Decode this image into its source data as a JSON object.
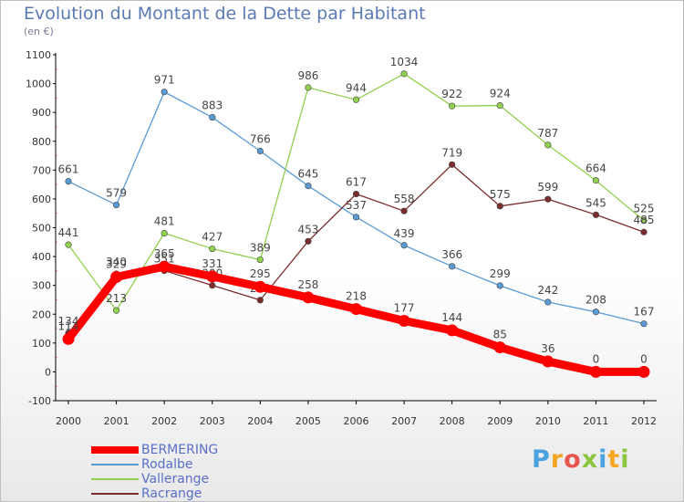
{
  "title": "Evolution du Montant de la Dette par Habitant",
  "subtitle": "(en €)",
  "logo_text": "Proxiti",
  "chart_data": {
    "type": "line",
    "title": "Evolution du Montant de la Dette par Habitant",
    "ylabel": "(en €)",
    "xlabel": "",
    "x": [
      "2000",
      "2001",
      "2002",
      "2003",
      "2004",
      "2005",
      "2006",
      "2007",
      "2008",
      "2009",
      "2010",
      "2011",
      "2012"
    ],
    "ylim": [
      -100,
      1100
    ],
    "yticks": [
      -100,
      0,
      100,
      200,
      300,
      400,
      500,
      600,
      700,
      800,
      900,
      1000,
      1100
    ],
    "grid": false,
    "legend_position": "bottom-left",
    "series": [
      {
        "name": "Rodalbe",
        "color": "#5b9bd5",
        "values": [
          661,
          579,
          971,
          883,
          766,
          645,
          537,
          439,
          366,
          299,
          242,
          208,
          167
        ]
      },
      {
        "name": "Vallerange",
        "color": "#92d050",
        "values": [
          441,
          213,
          481,
          427,
          389,
          986,
          944,
          1034,
          922,
          924,
          787,
          664,
          525
        ]
      },
      {
        "name": "Racrange",
        "color": "#7b2c2c",
        "values": [
          134,
          340,
          351,
          300,
          249,
          453,
          617,
          558,
          719,
          575,
          599,
          545,
          485
        ]
      },
      {
        "name": "BERMERING",
        "color": "#ff0000",
        "values": [
          114,
          329,
          365,
          331,
          295,
          258,
          218,
          177,
          144,
          85,
          36,
          0,
          0
        ]
      }
    ]
  }
}
